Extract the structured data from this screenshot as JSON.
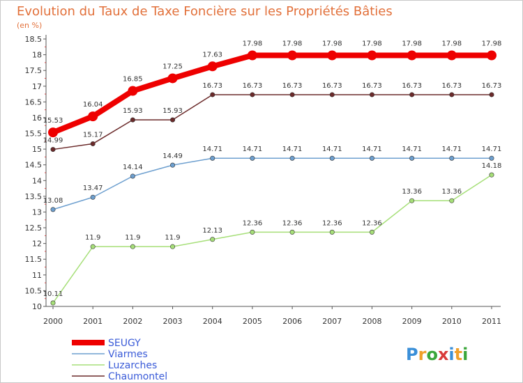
{
  "chart_data": {
    "type": "line",
    "title": "Evolution du Taux de Taxe Foncière sur les Propriétés Bâties",
    "subtitle": "(en %)",
    "x": [
      "2000",
      "2001",
      "2002",
      "2003",
      "2004",
      "2005",
      "2006",
      "2007",
      "2008",
      "2009",
      "2010",
      "2011"
    ],
    "ylim": [
      10,
      18.5
    ],
    "yticks": [
      "10",
      "10.5",
      "11",
      "11.5",
      "12",
      "12.5",
      "13",
      "13.5",
      "14",
      "14.5",
      "15",
      "15.5",
      "16",
      "16.5",
      "17",
      "17.5",
      "18",
      "18.5"
    ],
    "grid": false,
    "legend_position": "bottom-left",
    "series": [
      {
        "name": "SEUGY",
        "color": "#ee0000",
        "values": [
          15.53,
          16.04,
          16.85,
          17.25,
          17.63,
          17.98,
          17.98,
          17.98,
          17.98,
          17.98,
          17.98,
          17.98
        ],
        "labels": [
          "15.53",
          "16.04",
          "16.85",
          "17.25",
          "17.63",
          "17.98",
          "17.98",
          "17.98",
          "17.98",
          "17.98",
          "17.98",
          "17.98"
        ]
      },
      {
        "name": "Viarmes",
        "color": "#6d9fcf",
        "values": [
          13.08,
          13.47,
          14.14,
          14.49,
          14.71,
          14.71,
          14.71,
          14.71,
          14.71,
          14.71,
          14.71,
          14.71
        ],
        "labels": [
          "13.08",
          "13.47",
          "14.14",
          "14.49",
          "14.71",
          "14.71",
          "14.71",
          "14.71",
          "14.71",
          "14.71",
          "14.71",
          "14.71"
        ]
      },
      {
        "name": "Luzarches",
        "color": "#a6df78",
        "values": [
          10.11,
          11.9,
          11.9,
          11.9,
          12.13,
          12.36,
          12.36,
          12.36,
          12.36,
          13.36,
          13.36,
          14.18
        ],
        "labels": [
          "10.11",
          "11.9",
          "11.9",
          "11.9",
          "12.13",
          "12.36",
          "12.36",
          "12.36",
          "12.36",
          "13.36",
          "13.36",
          "14.18"
        ]
      },
      {
        "name": "Chaumontel",
        "color": "#6b2a2a",
        "values": [
          14.99,
          15.17,
          15.93,
          15.93,
          16.73,
          16.73,
          16.73,
          16.73,
          16.73,
          16.73,
          16.73,
          16.73
        ],
        "labels": [
          "14.99",
          "15.17",
          "15.93",
          "15.93",
          "16.73",
          "16.73",
          "16.73",
          "16.73",
          "16.73",
          "16.73",
          "16.73",
          "16.73"
        ]
      }
    ]
  },
  "logo": {
    "letters": [
      "P",
      "r",
      "o",
      "x",
      "i",
      "t",
      "i"
    ],
    "colors": [
      "#3a8fd8",
      "#f0a02a",
      "#3aa63a",
      "#d83a3a",
      "#3a8fd8",
      "#f0a02a",
      "#3aa63a"
    ]
  }
}
